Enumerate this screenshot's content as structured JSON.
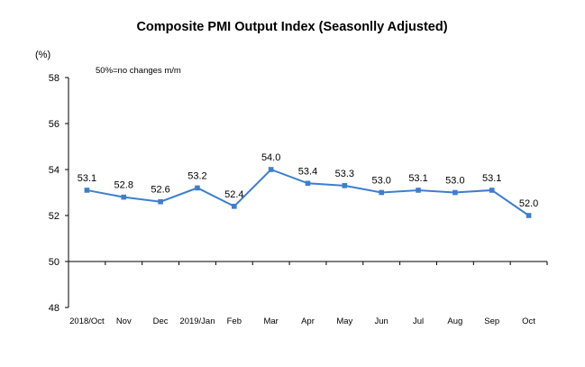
{
  "chart_data": {
    "type": "line",
    "title": "Composite PMI Output Index (Seasonlly Adjusted)",
    "ylabel": "(%)",
    "xlabel": "",
    "annotation": "50%=no changes  m/m",
    "categories": [
      "2018/Oct",
      "Nov",
      "Dec",
      "2019/Jan",
      "Feb",
      "Mar",
      "Apr",
      "May",
      "Jun",
      "Jul",
      "Aug",
      "Sep",
      "Oct"
    ],
    "series": [
      {
        "values": [
          53.1,
          52.8,
          52.6,
          53.2,
          52.4,
          54.0,
          53.4,
          53.3,
          53.0,
          53.1,
          53.0,
          53.1,
          52.0
        ],
        "labels": [
          "53.1",
          "52.8",
          "52.6",
          "53.2",
          "52.4",
          "54.0",
          "53.4",
          "53.3",
          "53.0",
          "53.1",
          "53.0",
          "53.1",
          "52.0"
        ],
        "color": "#3d7ecf"
      }
    ],
    "ylim": [
      48,
      58
    ],
    "yticks": [
      48,
      50,
      52,
      54,
      56,
      58
    ],
    "baseline": 50,
    "grid": false,
    "legend": "none"
  }
}
